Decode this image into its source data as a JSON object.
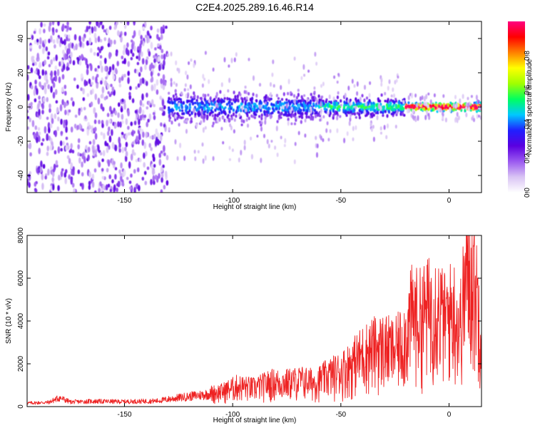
{
  "title": "C2E4.2025.289.16.46.R14",
  "chart_data": [
    {
      "type": "heatmap",
      "xlabel": "Height of straight line (km)",
      "ylabel": "Frequency (Hz)",
      "xlim": [
        -195,
        15
      ],
      "ylim": [
        -50,
        50
      ],
      "xticks": [
        -150,
        -100,
        -50,
        0
      ],
      "yticks": [
        -40,
        -20,
        0,
        20,
        40
      ],
      "colorbar": {
        "label": "Normalized spectral amplitude",
        "range": [
          0.0,
          1.0
        ],
        "ticks": [
          0.0,
          0.2,
          0.4,
          0.6,
          0.8
        ],
        "tick_labels": [
          "0.0",
          "0.2",
          "0.4",
          "0.6",
          "0.8"
        ],
        "colormap": [
          "#ffffff",
          "#d9c4f4",
          "#9b59f0",
          "#5a00e0",
          "#2020ff",
          "#00c8ff",
          "#00ff60",
          "#a0ff00",
          "#ffff00",
          "#ff8000",
          "#ff0000",
          "#ff0080"
        ]
      },
      "features": [
        {
          "x_range": [
            -195,
            -130
          ],
          "freq_spread_hz": 50,
          "amplitude": 0.1,
          "description": "broadband noise"
        },
        {
          "x_range": [
            -130,
            -60
          ],
          "freq_center_hz": 0,
          "freq_spread_hz": 8,
          "amplitude": 0.35
        },
        {
          "x_range": [
            -60,
            -20
          ],
          "freq_center_hz": 0,
          "freq_spread_hz": 5,
          "amplitude": 0.45
        },
        {
          "x_range": [
            -20,
            15
          ],
          "freq_center_hz": 0,
          "freq_spread_hz": 2,
          "amplitude": 0.95
        }
      ]
    },
    {
      "type": "line",
      "xlabel": "Height of straight line (km)",
      "ylabel": "SNR (10 * v/v)",
      "xlim": [
        -195,
        15
      ],
      "ylim": [
        0,
        8000
      ],
      "xticks": [
        -150,
        -100,
        -50,
        0
      ],
      "yticks": [
        0,
        2000,
        4000,
        6000,
        8000
      ],
      "color": "#ee2222",
      "series": [
        {
          "name": "SNR",
          "x": [
            -195,
            -185,
            -180,
            -175,
            -165,
            -150,
            -135,
            -125,
            -115,
            -105,
            -98,
            -90,
            -82,
            -75,
            -68,
            -62,
            -56,
            -50,
            -45,
            -40,
            -35,
            -30,
            -25,
            -20,
            -17,
            -14,
            -10,
            -6,
            -2,
            2,
            5,
            8,
            10,
            12,
            15
          ],
          "y": [
            200,
            240,
            500,
            260,
            300,
            280,
            320,
            500,
            650,
            800,
            1100,
            1000,
            1300,
            1300,
            1400,
            1300,
            1650,
            1900,
            2300,
            2800,
            3100,
            3200,
            3000,
            3800,
            5000,
            4700,
            5100,
            5500,
            4600,
            5200,
            4200,
            7000,
            7400,
            6500,
            4400
          ]
        }
      ]
    }
  ]
}
